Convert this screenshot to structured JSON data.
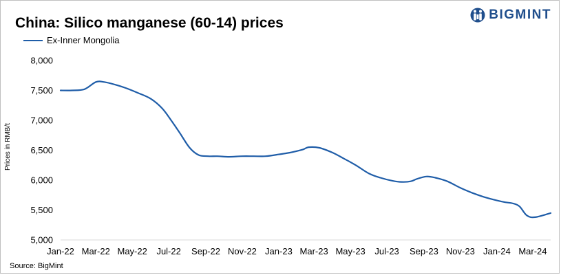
{
  "title": "China: Silico manganese (60-14) prices",
  "brand": "BIGMINT",
  "source": "Source: BigMint",
  "colors": {
    "series": "#1f5da8",
    "logo": "#1f4e8c",
    "axis": "#d9d9d9"
  },
  "chart_data": {
    "type": "line",
    "title": "China: Silico manganese (60-14) prices",
    "ylabel": "Prices in RMB/t",
    "xlabel": "",
    "ylim": [
      5000,
      8000
    ],
    "yticks": [
      5000,
      5500,
      6000,
      6500,
      7000,
      7500,
      8000
    ],
    "ytick_labels": [
      "5,000",
      "5,500",
      "6,000",
      "6,500",
      "7,000",
      "7,500",
      "8,000"
    ],
    "xlim": [
      "2022-01-01",
      "2024-03-31"
    ],
    "xtick_labels": [
      "Jan-22",
      "Mar-22",
      "May-22",
      "Jul-22",
      "Sep-22",
      "Nov-22",
      "Jan-23",
      "Mar-23",
      "May-23",
      "Jul-23",
      "Sep-23",
      "Nov-23",
      "Jan-24",
      "Mar-24"
    ],
    "legend": "top-left",
    "grid": false,
    "series": [
      {
        "name": "Ex-Inner Mongolia",
        "color": "#1f5da8",
        "x": [
          "2022-01-01",
          "2022-01-20",
          "2022-02-10",
          "2022-03-01",
          "2022-03-15",
          "2022-04-01",
          "2022-04-20",
          "2022-05-10",
          "2022-06-01",
          "2022-06-20",
          "2022-07-05",
          "2022-07-20",
          "2022-08-05",
          "2022-08-20",
          "2022-09-05",
          "2022-09-20",
          "2022-10-10",
          "2022-11-01",
          "2022-11-20",
          "2022-12-10",
          "2023-01-01",
          "2023-01-20",
          "2023-02-10",
          "2023-02-20",
          "2023-03-10",
          "2023-04-01",
          "2023-04-20",
          "2023-05-10",
          "2023-06-01",
          "2023-06-20",
          "2023-07-10",
          "2023-07-25",
          "2023-08-10",
          "2023-08-20",
          "2023-09-05",
          "2023-09-20",
          "2023-10-10",
          "2023-11-01",
          "2023-11-20",
          "2023-12-10",
          "2024-01-01",
          "2024-01-15",
          "2024-01-28",
          "2024-02-08",
          "2024-02-20",
          "2024-03-05",
          "2024-03-31"
        ],
        "y": [
          7500,
          7500,
          7520,
          7640,
          7640,
          7600,
          7540,
          7460,
          7360,
          7200,
          7000,
          6780,
          6540,
          6420,
          6400,
          6400,
          6390,
          6400,
          6400,
          6400,
          6430,
          6460,
          6510,
          6550,
          6540,
          6460,
          6360,
          6250,
          6110,
          6040,
          5990,
          5970,
          5980,
          6020,
          6060,
          6040,
          5980,
          5870,
          5790,
          5720,
          5660,
          5630,
          5610,
          5560,
          5410,
          5380,
          5450
        ]
      }
    ]
  }
}
